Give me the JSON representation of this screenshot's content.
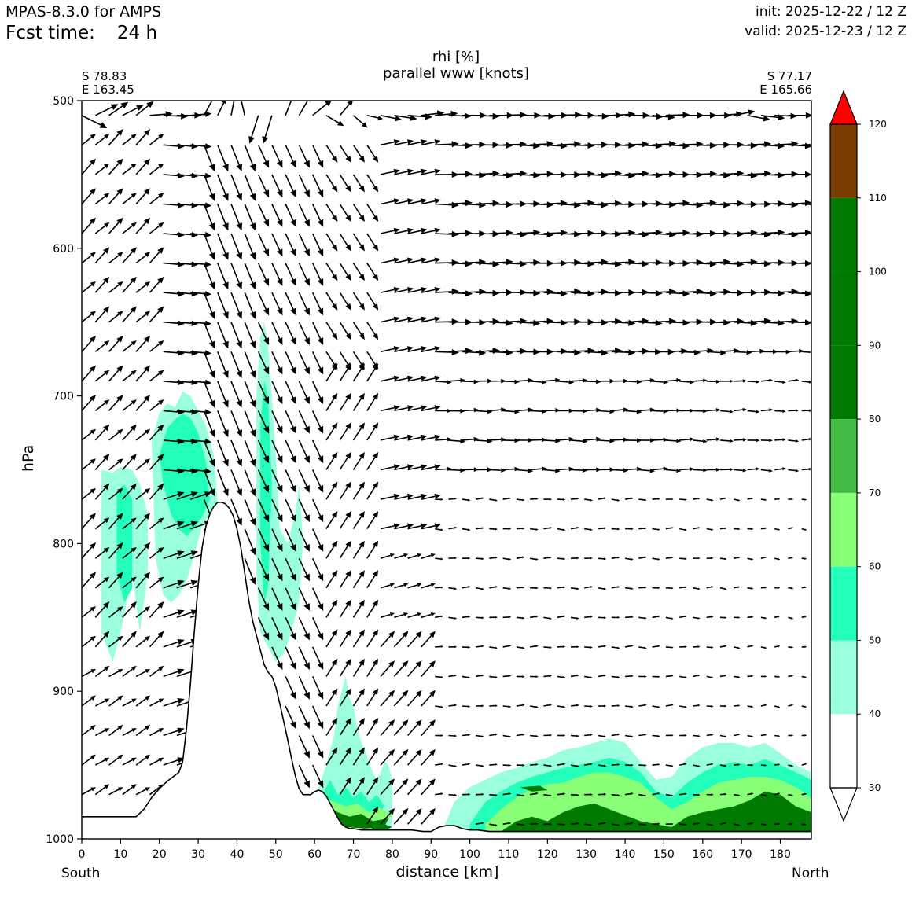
{
  "header": {
    "model": "MPAS-8.3.0 for AMPS",
    "fcst_label": "Fcst time:",
    "fcst_value": "24 h",
    "init": "init: 2025-12-22 / 12 Z",
    "valid": "valid: 2025-12-23 / 12 Z"
  },
  "section": {
    "start_lat": "S 78.83",
    "start_lon": "E 163.45",
    "end_lat": "S 77.17",
    "end_lon": "E 165.66",
    "left_end_label": "South",
    "right_end_label": "North"
  },
  "chart_data": {
    "type": "heatmap",
    "title_line1": "rhi [%]",
    "title_line2": "parallel www [knots]",
    "xlabel": "distance [km]",
    "ylabel": "hPa",
    "xlim": [
      0,
      188
    ],
    "ylim": [
      1000,
      500
    ],
    "y_inverted": true,
    "x_ticks": [
      "0",
      "10",
      "20",
      "30",
      "40",
      "50",
      "60",
      "70",
      "80",
      "90",
      "100",
      "110",
      "120",
      "130",
      "140",
      "150",
      "160",
      "170",
      "180"
    ],
    "y_ticks": [
      "500",
      "600",
      "700",
      "800",
      "900",
      "1000"
    ],
    "colorbar": {
      "ticks": [
        "30",
        "40",
        "50",
        "60",
        "70",
        "80",
        "90",
        "100",
        "110",
        "120"
      ],
      "levels": [
        30,
        40,
        50,
        60,
        70,
        80,
        90,
        100,
        110,
        120
      ],
      "colors": [
        "#ffffff",
        "#99ffdd",
        "#22ffbb",
        "#88ff77",
        "#44bb44",
        "#007a00",
        "#007a00",
        "#007a00",
        "#7a3c00",
        "#ff0000"
      ],
      "extend": "both"
    },
    "terrain_profile": {
      "x": [
        0,
        4,
        8,
        12,
        14,
        16,
        18,
        20,
        22,
        24,
        25,
        26,
        27,
        28,
        29,
        30,
        31,
        32,
        33,
        34,
        35,
        36,
        37,
        38,
        39,
        40,
        41,
        42,
        43,
        44,
        45,
        46,
        47,
        48,
        49,
        50,
        51,
        52,
        53,
        54,
        55,
        56,
        57,
        58,
        59,
        60,
        61,
        62,
        63,
        64,
        65,
        66,
        67,
        68,
        69,
        70,
        72,
        75,
        80,
        85,
        88,
        90,
        92,
        94,
        96,
        98,
        100,
        102,
        105,
        110,
        120,
        130,
        140,
        150,
        160,
        170,
        180,
        188
      ],
      "y": [
        985,
        985,
        985,
        985,
        985,
        980,
        972,
        966,
        961,
        957,
        955,
        948,
        925,
        895,
        860,
        828,
        803,
        788,
        780,
        775,
        772,
        772,
        773,
        776,
        781,
        790,
        803,
        820,
        838,
        852,
        862,
        872,
        882,
        887,
        890,
        897,
        908,
        920,
        932,
        945,
        957,
        966,
        970,
        970,
        970,
        968,
        967,
        968,
        971,
        976,
        981,
        986,
        990,
        992,
        993,
        993,
        994,
        994,
        994,
        994,
        995,
        995,
        992,
        991,
        991,
        993,
        994,
        994,
        995,
        995,
        995,
        995,
        995,
        995,
        995,
        995,
        995,
        995
      ]
    },
    "rhi_regions": [
      {
        "value": 45,
        "x": [
          5,
          8,
          10,
          13,
          15,
          17,
          17,
          15,
          13,
          10,
          8,
          5
        ],
        "y": [
          750,
          752,
          748,
          750,
          760,
          780,
          820,
          860,
          820,
          860,
          880,
          860
        ]
      },
      {
        "value": 52,
        "x": [
          9,
          11,
          13,
          13,
          11,
          9
        ],
        "y": [
          765,
          760,
          770,
          830,
          840,
          820
        ]
      },
      {
        "value": 45,
        "x": [
          18,
          20,
          22,
          24,
          26,
          28,
          30,
          32,
          34,
          35,
          33,
          31,
          29,
          27,
          25,
          23,
          21,
          19
        ],
        "y": [
          730,
          712,
          705,
          708,
          697,
          700,
          710,
          720,
          740,
          772,
          780,
          788,
          808,
          825,
          835,
          840,
          835,
          810
        ]
      },
      {
        "value": 52,
        "x": [
          20,
          22,
          24,
          26,
          28,
          30,
          32,
          33,
          31,
          29,
          27,
          25,
          23,
          21
        ],
        "y": [
          740,
          722,
          716,
          712,
          715,
          725,
          745,
          770,
          782,
          790,
          795,
          790,
          780,
          760
        ]
      },
      {
        "value": 45,
        "x": [
          45,
          46,
          47,
          48,
          49,
          50,
          51,
          53,
          55,
          56,
          57,
          56,
          54,
          52,
          50,
          48,
          46,
          45
        ],
        "y": [
          700,
          660,
          650,
          665,
          700,
          740,
          790,
          800,
          780,
          760,
          800,
          840,
          860,
          875,
          880,
          870,
          860,
          820
        ]
      },
      {
        "value": 52,
        "x": [
          46,
          47,
          48,
          49,
          48,
          47,
          46
        ],
        "y": [
          720,
          690,
          700,
          760,
          830,
          840,
          800
        ]
      },
      {
        "value": 45,
        "x": [
          61,
          63,
          65,
          66,
          67,
          68,
          69,
          70,
          71,
          72,
          73,
          74,
          75,
          76,
          77,
          78,
          79,
          80,
          80,
          79,
          77,
          75,
          73,
          71,
          69,
          67,
          65,
          63,
          61
        ],
        "y": [
          965,
          950,
          930,
          910,
          900,
          890,
          905,
          910,
          925,
          935,
          940,
          948,
          955,
          960,
          955,
          948,
          950,
          960,
          990,
          995,
          985,
          980,
          988,
          975,
          980,
          985,
          975,
          970,
          968
        ]
      },
      {
        "value": 52,
        "x": [
          62,
          64,
          66,
          68,
          70,
          72,
          74,
          76,
          78,
          76,
          72,
          68,
          64
        ],
        "y": [
          970,
          960,
          970,
          965,
          972,
          968,
          975,
          970,
          978,
          985,
          988,
          986,
          978
        ]
      },
      {
        "value": 65,
        "x": [
          62,
          65,
          68,
          71,
          74,
          77,
          80,
          78,
          74,
          70,
          66,
          63
        ],
        "y": [
          972,
          975,
          978,
          976,
          982,
          979,
          984,
          990,
          992,
          990,
          985,
          980
        ]
      },
      {
        "value": 80,
        "x": [
          63,
          66,
          69,
          72,
          75,
          79,
          78,
          73,
          68,
          65
        ],
        "y": [
          978,
          982,
          985,
          983,
          988,
          986,
          992,
          993,
          992,
          986
        ]
      },
      {
        "value": 105,
        "x": [
          74,
          76,
          78,
          80,
          78,
          75
        ],
        "y": [
          991,
          989,
          990,
          992,
          994,
          994
        ]
      },
      {
        "value": 45,
        "x": [
          92,
          96,
          100,
          104,
          108,
          112,
          116,
          120,
          124,
          128,
          132,
          136,
          140,
          144,
          148,
          152,
          156,
          160,
          164,
          168,
          172,
          176,
          180,
          184,
          188,
          188,
          92
        ],
        "y": [
          1000,
          975,
          965,
          960,
          955,
          952,
          948,
          945,
          940,
          938,
          935,
          932,
          935,
          948,
          960,
          958,
          945,
          938,
          935,
          935,
          938,
          935,
          942,
          950,
          955,
          1000,
          1000
        ]
      },
      {
        "value": 52,
        "x": [
          100,
          104,
          108,
          112,
          116,
          120,
          124,
          128,
          132,
          136,
          140,
          144,
          148,
          152,
          156,
          160,
          164,
          168,
          172,
          176,
          180,
          184,
          188,
          188,
          100
        ],
        "y": [
          990,
          975,
          968,
          962,
          958,
          955,
          952,
          950,
          948,
          945,
          948,
          955,
          968,
          972,
          962,
          955,
          950,
          948,
          950,
          946,
          950,
          955,
          960,
          1000,
          1000
        ]
      },
      {
        "value": 65,
        "x": [
          104,
          108,
          112,
          116,
          120,
          124,
          128,
          132,
          136,
          140,
          144,
          148,
          152,
          156,
          160,
          164,
          168,
          172,
          176,
          180,
          184,
          188,
          188,
          104
        ],
        "y": [
          990,
          980,
          972,
          966,
          963,
          962,
          958,
          955,
          955,
          958,
          962,
          972,
          980,
          975,
          968,
          962,
          960,
          958,
          958,
          960,
          965,
          972,
          1000,
          1000
        ]
      },
      {
        "value": 80,
        "x": [
          108,
          112,
          116,
          120,
          124,
          128,
          132,
          136,
          140,
          144,
          148,
          152,
          156,
          160,
          164,
          168,
          172,
          176,
          180,
          184,
          188,
          188,
          108
        ],
        "y": [
          995,
          988,
          985,
          988,
          982,
          978,
          976,
          980,
          984,
          988,
          990,
          992,
          985,
          982,
          980,
          978,
          974,
          968,
          970,
          978,
          982,
          1000,
          1000
        ]
      },
      {
        "value": 80,
        "x": [
          113,
          118,
          120,
          116
        ],
        "y": [
          965,
          964,
          967,
          968
        ]
      }
    ],
    "wind_field": {
      "x_columns": [
        0,
        3.5,
        7,
        10.5,
        14,
        17.5,
        21,
        24.5,
        28,
        31.5,
        35,
        38.5,
        42,
        45.5,
        49,
        52.5,
        56,
        59.5,
        63,
        66.5,
        70,
        73.5,
        77,
        80.5,
        84,
        87.5,
        91,
        94.5,
        98,
        101.5,
        105,
        108.5,
        112,
        115.5,
        119,
        122.5,
        126,
        129.5,
        133,
        136.5,
        140,
        143.5,
        147,
        150.5,
        154,
        157.5,
        161,
        164.5,
        168,
        171.5,
        175,
        178.5,
        182,
        185.5
      ],
      "p_levels": [
        510,
        530,
        550,
        570,
        590,
        610,
        630,
        650,
        670,
        690,
        710,
        730,
        750,
        770,
        790,
        810,
        830,
        850,
        870,
        890,
        910,
        930,
        950,
        970,
        990
      ],
      "scale_px_per_knot": 4.5,
      "arrows": [
        [
          0,
          510,
          7.2,
          -3.6
        ],
        [
          3.5,
          510,
          6.5,
          3.2
        ],
        [
          7,
          510,
          5.5,
          3.8
        ],
        [
          10.5,
          510,
          6.0,
          3.0
        ],
        [
          14,
          510,
          5.0,
          4.0
        ],
        [
          17.5,
          510,
          6.5,
          0.5
        ],
        [
          21,
          510,
          7.0,
          -0.3
        ],
        [
          24.5,
          510,
          7.0,
          0
        ],
        [
          28,
          510,
          6.0,
          0.5
        ],
        [
          31.5,
          510,
          3.5,
          6.5
        ],
        [
          35,
          510,
          2.5,
          5.0
        ],
        [
          38.5,
          510,
          1.5,
          7.8
        ],
        [
          42,
          510,
          -2.0,
          8.5
        ],
        [
          45.5,
          510,
          -2.5,
          -8.0
        ],
        [
          49,
          510,
          -2.5,
          -8.0
        ],
        [
          52.5,
          510,
          2.5,
          6.5
        ],
        [
          56,
          510,
          3.5,
          6.0
        ],
        [
          59.5,
          510,
          5.5,
          4.5
        ],
        [
          63,
          510,
          5.0,
          -3.0
        ],
        [
          66.5,
          510,
          3.8,
          4.5
        ],
        [
          70,
          510,
          4.0,
          -3.5
        ],
        [
          73.5,
          510,
          4.5,
          -1.0
        ],
        [
          77,
          510,
          6.0,
          -1.2
        ],
        [
          80.5,
          510,
          6.5,
          -1.0
        ],
        [
          84,
          510,
          7.0,
          -0.5
        ],
        [
          87.5,
          510,
          6.5,
          0.8
        ],
        [
          91,
          510,
          6.5,
          0.6
        ],
        [
          94.5,
          510,
          6.5,
          -0.2
        ],
        [
          98,
          510,
          7.0,
          0
        ],
        [
          101.5,
          510,
          6.8,
          -0.3
        ],
        [
          105,
          510,
          7.0,
          0
        ],
        [
          108.5,
          510,
          6.8,
          0.2
        ],
        [
          112,
          510,
          7.0,
          0
        ],
        [
          115.5,
          510,
          7.2,
          -0.3
        ],
        [
          119,
          510,
          7.0,
          0
        ],
        [
          122.5,
          510,
          7.0,
          0.2
        ],
        [
          126,
          510,
          6.8,
          0
        ],
        [
          129.5,
          510,
          7.0,
          -0.3
        ],
        [
          133,
          510,
          7.0,
          0
        ],
        [
          136.5,
          510,
          6.8,
          0.4
        ],
        [
          140,
          510,
          7.0,
          0
        ],
        [
          143.5,
          510,
          7.0,
          -0.4
        ],
        [
          147,
          510,
          6.5,
          -0.6
        ],
        [
          150.5,
          510,
          6.8,
          0.2
        ],
        [
          154,
          510,
          7.0,
          0
        ],
        [
          157.5,
          510,
          6.8,
          0
        ],
        [
          161,
          510,
          7.0,
          0
        ],
        [
          164.5,
          510,
          6.5,
          0.5
        ],
        [
          168,
          510,
          6.0,
          1.2
        ],
        [
          171.5,
          510,
          6.5,
          -1.2
        ],
        [
          175,
          510,
          6.8,
          -0.8
        ],
        [
          178.5,
          510,
          6.5,
          -0.2
        ],
        [
          182,
          510,
          7.0,
          0
        ],
        [
          185.5,
          510,
          6.5,
          0
        ]
      ]
    }
  }
}
